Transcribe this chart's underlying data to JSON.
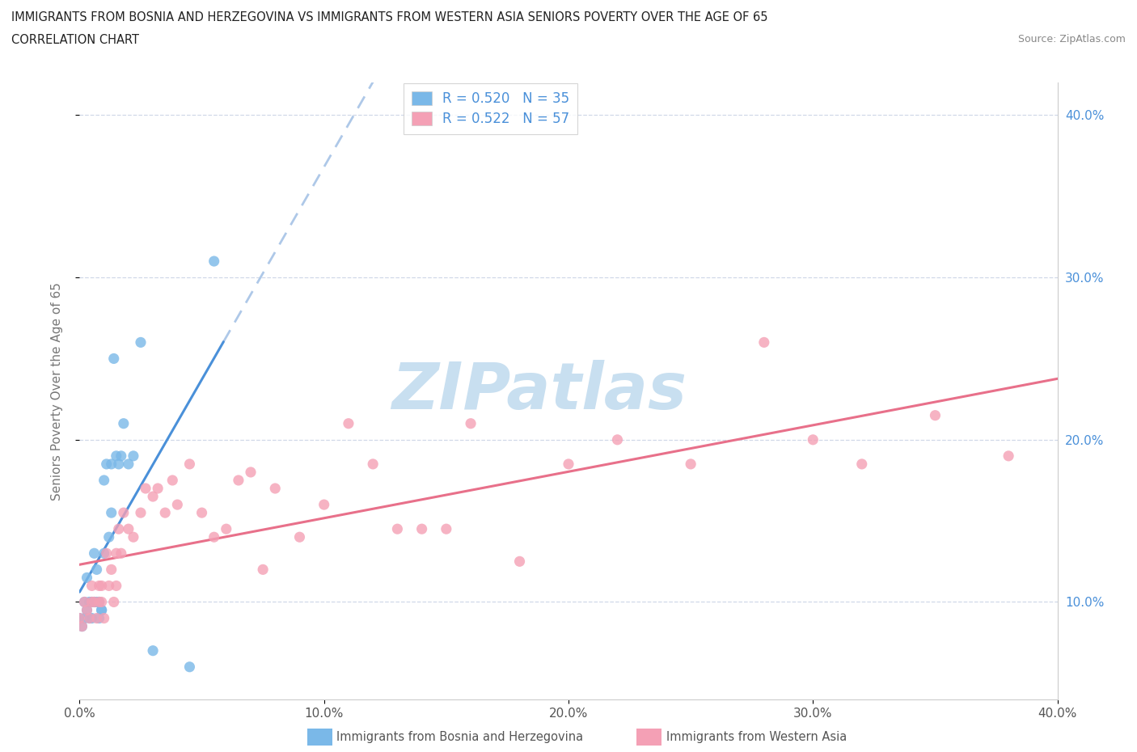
{
  "title_line1": "IMMIGRANTS FROM BOSNIA AND HERZEGOVINA VS IMMIGRANTS FROM WESTERN ASIA SENIORS POVERTY OVER THE AGE OF 65",
  "title_line2": "CORRELATION CHART",
  "source": "Source: ZipAtlas.com",
  "ylabel": "Seniors Poverty Over the Age of 65",
  "xmin": 0.0,
  "xmax": 0.4,
  "ymin": 0.04,
  "ymax": 0.42,
  "r_bosnia": 0.52,
  "n_bosnia": 35,
  "r_western_asia": 0.522,
  "n_western_asia": 57,
  "color_bosnia": "#7ab8e8",
  "color_western_asia": "#f4a0b5",
  "trendline_color_bosnia": "#4a90d9",
  "trendline_color_western_asia": "#e8708a",
  "trendline_dashed_color": "#aec8e8",
  "background_color": "#ffffff",
  "tick_color": "#4a90d9",
  "grid_color": "#d0d8e8",
  "watermark_color": "#c8dff0",
  "bosnia_x": [
    0.0,
    0.001,
    0.002,
    0.002,
    0.003,
    0.003,
    0.004,
    0.004,
    0.005,
    0.005,
    0.006,
    0.006,
    0.007,
    0.007,
    0.008,
    0.008,
    0.009,
    0.009,
    0.01,
    0.01,
    0.011,
    0.012,
    0.013,
    0.013,
    0.014,
    0.015,
    0.016,
    0.017,
    0.018,
    0.02,
    0.022,
    0.025,
    0.03,
    0.045,
    0.055
  ],
  "bosnia_y": [
    0.09,
    0.085,
    0.1,
    0.09,
    0.095,
    0.115,
    0.09,
    0.1,
    0.1,
    0.09,
    0.13,
    0.1,
    0.12,
    0.1,
    0.1,
    0.09,
    0.095,
    0.095,
    0.175,
    0.13,
    0.185,
    0.14,
    0.185,
    0.155,
    0.25,
    0.19,
    0.185,
    0.19,
    0.21,
    0.185,
    0.19,
    0.26,
    0.07,
    0.06,
    0.31
  ],
  "western_asia_x": [
    0.0,
    0.001,
    0.002,
    0.003,
    0.004,
    0.005,
    0.005,
    0.006,
    0.007,
    0.008,
    0.008,
    0.009,
    0.009,
    0.01,
    0.011,
    0.012,
    0.013,
    0.014,
    0.015,
    0.015,
    0.016,
    0.017,
    0.018,
    0.02,
    0.022,
    0.025,
    0.027,
    0.03,
    0.032,
    0.035,
    0.038,
    0.04,
    0.045,
    0.05,
    0.055,
    0.06,
    0.065,
    0.07,
    0.075,
    0.08,
    0.09,
    0.1,
    0.11,
    0.12,
    0.13,
    0.14,
    0.15,
    0.16,
    0.18,
    0.2,
    0.22,
    0.25,
    0.28,
    0.3,
    0.32,
    0.35,
    0.38
  ],
  "western_asia_y": [
    0.09,
    0.085,
    0.1,
    0.095,
    0.09,
    0.1,
    0.11,
    0.1,
    0.09,
    0.1,
    0.11,
    0.1,
    0.11,
    0.09,
    0.13,
    0.11,
    0.12,
    0.1,
    0.11,
    0.13,
    0.145,
    0.13,
    0.155,
    0.145,
    0.14,
    0.155,
    0.17,
    0.165,
    0.17,
    0.155,
    0.175,
    0.16,
    0.185,
    0.155,
    0.14,
    0.145,
    0.175,
    0.18,
    0.12,
    0.17,
    0.14,
    0.16,
    0.21,
    0.185,
    0.145,
    0.145,
    0.145,
    0.21,
    0.125,
    0.185,
    0.2,
    0.185,
    0.26,
    0.2,
    0.185,
    0.215,
    0.19
  ],
  "legend_bosnia": "Immigrants from Bosnia and Herzegovina",
  "legend_western_asia": "Immigrants from Western Asia"
}
